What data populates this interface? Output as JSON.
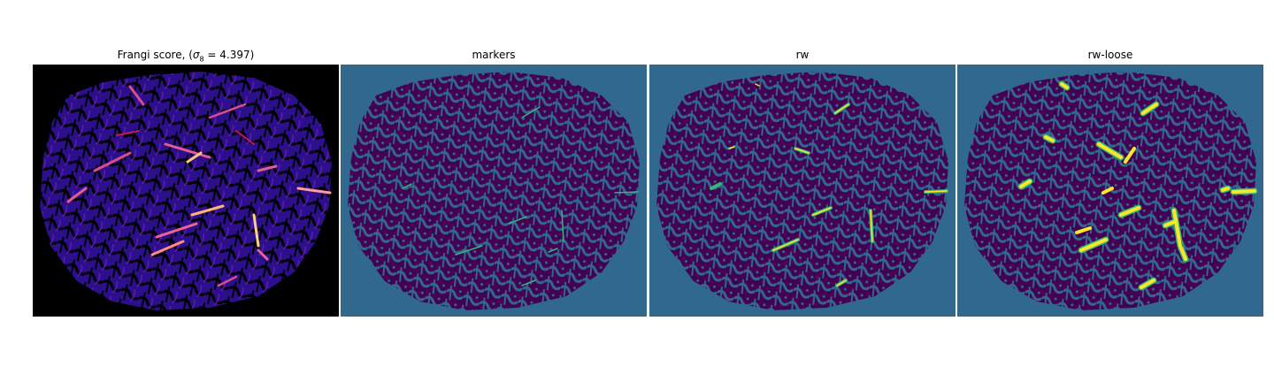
{
  "panels": [
    {
      "title_prefix": "Frangi score, (",
      "title_sigma": "σ",
      "title_sub": "8",
      "title_suffix": " = 4.397)"
    },
    {
      "title": "markers"
    },
    {
      "title": "rw"
    },
    {
      "title": "rw-loose"
    }
  ],
  "colors": {
    "frangi_bg": "#000000",
    "frangi_base": "#2c0f8a",
    "frangi_mid": "#7b1fa2",
    "frangi_hot": "#f06292",
    "frangi_peak": "#ffd180",
    "seg_bg": "#31688e",
    "seg_tissue": "#440154",
    "seg_marker": "#35b779",
    "seg_loose": "#fde725"
  }
}
